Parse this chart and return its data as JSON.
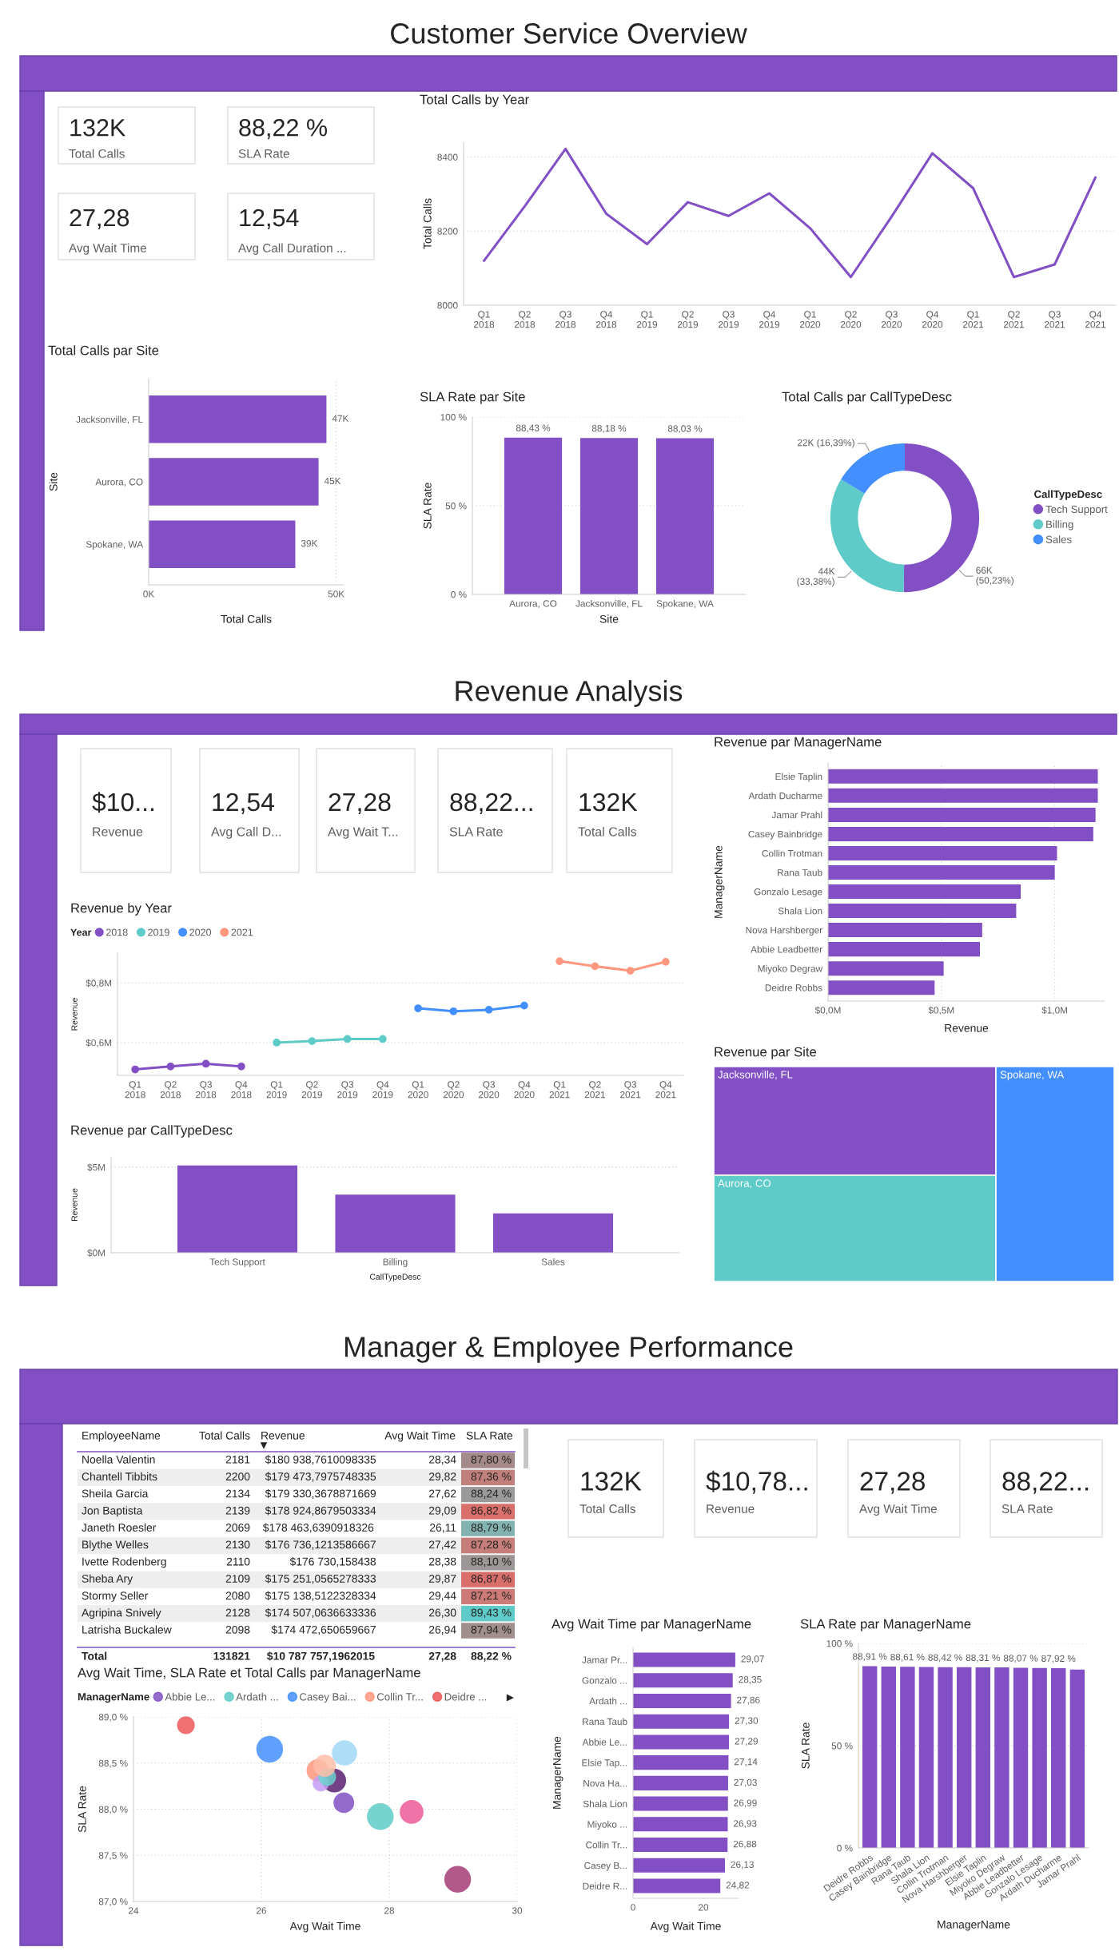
{
  "chart_data": [
    {
      "type": "other",
      "title": "Customer Service Overview"
    },
    {
      "type": "other",
      "categories": [
        "Total Calls",
        "SLA Rate",
        "Avg Wait Time",
        "Avg Call Duration ..."
      ],
      "value_labels": [
        "132K",
        "88,22 %",
        "27,28",
        "12,54"
      ]
    },
    {
      "type": "line",
      "title": "Total Calls by Year",
      "ylabel": "Total Calls",
      "categories": [
        "Q1\n2018",
        "Q2\n2018",
        "Q3\n2018",
        "Q4\n2018",
        "Q1\n2019",
        "Q2\n2019",
        "Q3\n2019",
        "Q4\n2019",
        "Q1\n2020",
        "Q2\n2020",
        "Q3\n2020",
        "Q4\n2020",
        "Q1\n2021",
        "Q2\n2021",
        "Q3\n2021",
        "Q4\n2021"
      ],
      "values": [
        8120,
        8267,
        8422,
        8247,
        8165,
        8278,
        8241,
        8302,
        8208,
        8076,
        8239,
        8410,
        8316,
        8076,
        8110,
        8345
      ],
      "color": "#8250c4",
      "ylim": [
        8000,
        8440
      ],
      "yticks": [
        8000,
        8200,
        8400
      ],
      "grid": "y"
    },
    {
      "type": "bar",
      "orientation": "horizontal",
      "title": "Total Calls par Site",
      "xlabel": "Total Calls",
      "ylabel": "Site",
      "categories": [
        "Jacksonville, FL",
        "Aurora, CO",
        "Spokane, WA"
      ],
      "values": [
        47.4,
        45.3,
        39.1
      ],
      "value_labels": [
        "47K",
        "45K",
        "39K"
      ],
      "color": "#8250c4",
      "xlim": [
        0,
        52
      ],
      "xticks": [
        {
          "value": 0,
          "label": "0K"
        },
        {
          "value": 50,
          "label": "50K"
        }
      ],
      "grid": "x"
    },
    {
      "type": "bar",
      "title": "SLA Rate par Site",
      "xlabel": "Site",
      "ylabel": "SLA Rate",
      "categories": [
        "Aurora, CO",
        "Jacksonville, FL",
        "Spokane, WA"
      ],
      "values": [
        88.43,
        88.18,
        88.03
      ],
      "value_labels": [
        "88,43 %",
        "88,18 %",
        "88,03 %"
      ],
      "color": "#8250c4",
      "ylim": [
        0,
        100
      ],
      "yticks": [
        {
          "value": 0,
          "label": "0 %"
        },
        {
          "value": 50,
          "label": "50 %"
        },
        {
          "value": 100,
          "label": "100 %"
        }
      ],
      "grid": "y"
    },
    {
      "type": "donut",
      "title": "Total Calls par CallTypeDesc",
      "legend_title": "CallTypeDesc",
      "legend": "right",
      "categories": [
        "Tech Support",
        "Billing",
        "Sales"
      ],
      "values": [
        50.23,
        33.38,
        16.39
      ],
      "value_labels": [
        "66K\n(50,23%)",
        "44K\n(33,38%)",
        "22K (16,39%)"
      ],
      "colors": [
        "#8250c4",
        "#5ecbc8",
        "#438fff"
      ]
    },
    {
      "type": "other",
      "title": "Revenue Analysis"
    },
    {
      "type": "other",
      "categories": [
        "Revenue",
        "Avg Call D...",
        "Avg Wait T...",
        "SLA Rate",
        "Total Calls"
      ],
      "value_labels": [
        "$10...",
        "12,54",
        "27,28",
        "88,22...",
        "132K"
      ]
    },
    {
      "type": "line",
      "title": "Revenue by Year",
      "ylabel": "Revenue",
      "legend_title": "Year",
      "legend": "top left",
      "marker": "circle",
      "categories": [
        "Q1\n2018",
        "Q2\n2018",
        "Q3\n2018",
        "Q4\n2018",
        "Q1\n2019",
        "Q2\n2019",
        "Q3\n2019",
        "Q4\n2019",
        "Q1\n2020",
        "Q2\n2020",
        "Q3\n2020",
        "Q4\n2020",
        "Q1\n2021",
        "Q2\n2021",
        "Q3\n2021",
        "Q4\n2021"
      ],
      "series": [
        {
          "name": "2018",
          "color": "#8250c4",
          "values": [
            0.51,
            0.52,
            0.529,
            0.52,
            null,
            null,
            null,
            null,
            null,
            null,
            null,
            null,
            null,
            null,
            null,
            null
          ]
        },
        {
          "name": "2019",
          "color": "#5ecbc8",
          "values": [
            null,
            null,
            null,
            null,
            0.6,
            0.605,
            0.612,
            0.612,
            null,
            null,
            null,
            null,
            null,
            null,
            null,
            null
          ]
        },
        {
          "name": "2020",
          "color": "#438fff",
          "values": [
            null,
            null,
            null,
            null,
            null,
            null,
            null,
            null,
            0.715,
            0.705,
            0.71,
            0.724,
            null,
            null,
            null,
            null
          ]
        },
        {
          "name": "2021",
          "color": "#ff977e",
          "values": [
            null,
            null,
            null,
            null,
            null,
            null,
            null,
            null,
            null,
            null,
            null,
            null,
            0.873,
            0.856,
            0.841,
            0.871
          ]
        }
      ],
      "ylim": [
        0.49,
        0.9
      ],
      "yticks": [
        {
          "value": 0.6,
          "label": "$0,6M"
        },
        {
          "value": 0.8,
          "label": "$0,8M"
        }
      ],
      "grid": "y"
    },
    {
      "type": "bar",
      "title": "Revenue par CallTypeDesc",
      "xlabel": "CallTypeDesc",
      "ylabel": "Revenue",
      "categories": [
        "Tech Support",
        "Billing",
        "Sales"
      ],
      "values": [
        5.1,
        3.4,
        2.3
      ],
      "color": "#8250c4",
      "ylim": [
        0,
        5.6
      ],
      "yticks": [
        {
          "value": 0,
          "label": "$0M"
        },
        {
          "value": 5,
          "label": "$5M"
        }
      ],
      "grid": "y"
    },
    {
      "type": "bar",
      "orientation": "horizontal",
      "title": "Revenue par ManagerName",
      "xlabel": "Revenue",
      "ylabel": "ManagerName",
      "categories": [
        "Elsie Taplin",
        "Ardath Ducharme",
        "Jamar Prahl",
        "Casey Bainbridge",
        "Collin Trotman",
        "Rana Taub",
        "Gonzalo Lesage",
        "Shala Lion",
        "Nova Harshberger",
        "Abbie Leadbetter",
        "Miyoko Degraw",
        "Deidre Robbs"
      ],
      "values": [
        1.19,
        1.19,
        1.18,
        1.17,
        1.01,
        1.0,
        0.85,
        0.83,
        0.68,
        0.67,
        0.51,
        0.47
      ],
      "color": "#8250c4",
      "xlim": [
        0,
        1.22
      ],
      "xticks": [
        {
          "value": 0,
          "label": "$0,0M"
        },
        {
          "value": 0.5,
          "label": "$0,5M"
        },
        {
          "value": 1.0,
          "label": "$1,0M"
        }
      ],
      "grid": "x"
    },
    {
      "type": "other",
      "title": "Revenue par Site",
      "categories": [
        "Jacksonville, FL",
        "Aurora, CO",
        "Spokane, WA"
      ],
      "colors": [
        "#8250c4",
        "#5ecbc8",
        "#438fff"
      ]
    },
    {
      "type": "other",
      "title": "Manager & Employee Performance"
    },
    {
      "type": "other",
      "categories": [
        "EmployeeName",
        "Total Calls",
        "Revenue",
        "Avg Wait Time",
        "SLA Rate"
      ],
      "y_categories": [
        "Noella Valentin",
        "Chantell Tibbits",
        "Sheila Garcia",
        "Jon Baptista",
        "Janeth Roesler",
        "Blythe Welles",
        "Ivette Rodenberg",
        "Sheba Ary",
        "Stormy Seller",
        "Agripina Snively",
        "Latrisha Buckalew"
      ],
      "cell_labels": [
        [
          "2181",
          "$180 938,7610098335",
          "28,34",
          "87,80 %"
        ],
        [
          "2200",
          "$179 473,7975748335",
          "29,82",
          "87,36 %"
        ],
        [
          "2134",
          "$179 330,3678871669",
          "27,62",
          "88,24 %"
        ],
        [
          "2139",
          "$178 924,8679503334",
          "29,09",
          "86,82 %"
        ],
        [
          "2069",
          "$178 463,6390918326",
          "26,11",
          "88,79 %"
        ],
        [
          "2130",
          "$176 736,1213586667",
          "27,42",
          "87,28 %"
        ],
        [
          "2110",
          "$176 730,158438",
          "28,38",
          "88,10 %"
        ],
        [
          "2109",
          "$175 251,0565278333",
          "29,87",
          "86,87 %"
        ],
        [
          "2080",
          "$175 138,5122328334",
          "29,44",
          "87,21 %"
        ],
        [
          "2128",
          "$174 507,0636633336",
          "26,30",
          "89,43 %"
        ],
        [
          "2098",
          "$174 472,650659667",
          "26,94",
          "87,94 %"
        ]
      ],
      "colors": [
        "#a48b89",
        "#c2807d",
        "#9a9a9a",
        "#d9706c",
        "#82b3b0",
        "#c77e7a",
        "#9c9796",
        "#d86f6b",
        "#cc7b77",
        "#5ecbc8",
        "#a18f8d"
      ],
      "totals": [
        "Total",
        "131821",
        "$10 787 757,1962015",
        "27,28",
        "88,22 %"
      ]
    },
    {
      "type": "other",
      "categories": [
        "Total Calls",
        "Revenue",
        "Avg Wait Time",
        "SLA Rate"
      ],
      "value_labels": [
        "132K",
        "$10,78...",
        "27,28",
        "88,22..."
      ]
    },
    {
      "type": "bubble",
      "title": "Avg Wait Time, SLA Rate et Total Calls par ManagerName",
      "xlabel": "Avg Wait Time",
      "ylabel": "SLA Rate",
      "legend_title": "ManagerName",
      "legend": "top left",
      "series": [
        {
          "name": "Abbie Le...",
          "color": "#8250c4",
          "x": [
            27.29
          ],
          "values": [
            88.07
          ],
          "sizes": [
            0.6
          ]
        },
        {
          "name": "Ardath ...",
          "color": "#5ecbc8",
          "x": [
            27.86
          ],
          "values": [
            87.92
          ],
          "sizes": [
            1.0
          ]
        },
        {
          "name": "Casey Bai...",
          "color": "#438fff",
          "x": [
            26.13
          ],
          "values": [
            88.65
          ],
          "sizes": [
            1.0
          ]
        },
        {
          "name": "Collin Tr...",
          "color": "#ff977e",
          "x": [
            26.88
          ],
          "values": [
            88.42
          ],
          "sizes": [
            0.69
          ]
        },
        {
          "name": "Deidre ...",
          "color": "#eb5757",
          "x": [
            24.82
          ],
          "values": [
            88.91
          ],
          "sizes": [
            0.44
          ]
        },
        {
          "color": "#5b2071",
          "x": [
            27.14
          ],
          "values": [
            88.31
          ],
          "sizes": [
            0.79
          ]
        },
        {
          "color": "#ec5a96",
          "x": [
            28.35
          ],
          "values": [
            87.97
          ],
          "sizes": [
            0.79
          ]
        },
        {
          "color": "#a43b76",
          "x": [
            29.07
          ],
          "values": [
            87.24
          ],
          "sizes": [
            1.0
          ]
        },
        {
          "color": "#c59cf5",
          "x": [
            26.93
          ],
          "values": [
            88.28
          ],
          "sizes": [
            0.37
          ]
        },
        {
          "color": "#6fd3cf",
          "x": [
            27.03
          ],
          "values": [
            88.35
          ],
          "sizes": [
            0.44
          ]
        },
        {
          "color": "#a0d8f5",
          "x": [
            27.3
          ],
          "values": [
            88.61
          ],
          "sizes": [
            0.89
          ]
        },
        {
          "color": "#ffbda8",
          "x": [
            26.99
          ],
          "values": [
            88.47
          ],
          "sizes": [
            0.69
          ]
        }
      ],
      "xlim": [
        24,
        30
      ],
      "xticks": [
        24,
        26,
        28,
        30
      ],
      "ylim": [
        87,
        89
      ],
      "yticks": [
        {
          "value": 87,
          "label": "87,0 %"
        },
        {
          "value": 87.5,
          "label": "87,5 %"
        },
        {
          "value": 88,
          "label": "88,0 %"
        },
        {
          "value": 88.5,
          "label": "88,5 %"
        },
        {
          "value": 89,
          "label": "89,0 %"
        }
      ],
      "grid": true
    },
    {
      "type": "bar",
      "orientation": "horizontal",
      "title": "Avg Wait Time par ManagerName",
      "xlabel": "Avg Wait Time",
      "ylabel": "ManagerName",
      "categories": [
        "Jamar Pr...",
        "Gonzalo ...",
        "Ardath ...",
        "Rana Taub",
        "Abbie Le...",
        "Elsie Tap...",
        "Nova Ha...",
        "Shala Lion",
        "Miyoko ...",
        "Collin Tr...",
        "Casey B...",
        "Deidre R..."
      ],
      "values": [
        29.07,
        28.35,
        27.86,
        27.3,
        27.29,
        27.14,
        27.03,
        26.99,
        26.93,
        26.88,
        26.13,
        24.82
      ],
      "value_labels": [
        "29,07",
        "28,35",
        "27,86",
        "27,30",
        "27,29",
        "27,14",
        "27,03",
        "26,99",
        "26,93",
        "26,88",
        "26,13",
        "24,82"
      ],
      "color": "#8250c4",
      "xlim": [
        0,
        30
      ],
      "xticks": [
        0,
        20
      ]
    },
    {
      "type": "bar",
      "title": "SLA Rate par ManagerName",
      "xlabel": "ManagerName",
      "ylabel": "SLA Rate",
      "categories": [
        "Deidre Robbs",
        "Casey Bainbridge",
        "Rana Taub",
        "Shala Lion",
        "Collin Trotman",
        "Nova Harshberger",
        "Elsie Taplin",
        "Miyoko Degraw",
        "Abbie Leadbetter",
        "Gonzalo Lesage",
        "Ardath Ducharme",
        "Jamar Prahl"
      ],
      "values": [
        88.91,
        88.7,
        88.61,
        88.5,
        88.42,
        88.4,
        88.31,
        88.3,
        88.07,
        88.0,
        87.92,
        87.2
      ],
      "value_labels": [
        "88,91 %",
        null,
        "88,61 %",
        null,
        "88,42 %",
        null,
        "88,31 %",
        null,
        "88,07 %",
        null,
        "87,92 %",
        null
      ],
      "color": "#8250c4",
      "ylim": [
        0,
        100
      ],
      "yticks": [
        {
          "value": 0,
          "label": "0 %"
        },
        {
          "value": 50,
          "label": "50 %"
        },
        {
          "value": 100,
          "label": "100 %"
        }
      ],
      "grid": "y"
    }
  ]
}
